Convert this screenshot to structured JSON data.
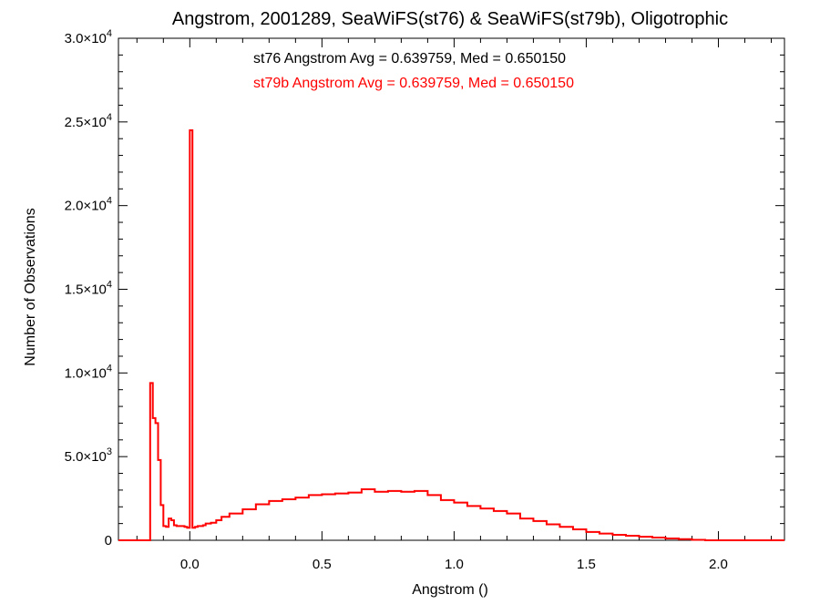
{
  "chart_data": {
    "type": "histogram-step",
    "title": "Angstrom, 2001289, SeaWiFS(st76) & SeaWiFS(st79b), Oligotrophic",
    "xlabel": "Angstrom ()",
    "ylabel": "Number of Observations",
    "xlim": [
      -0.27,
      2.25
    ],
    "ylim": [
      0,
      30000
    ],
    "xticks": [
      {
        "value": 0.0,
        "label": "0.0"
      },
      {
        "value": 0.5,
        "label": "0.5"
      },
      {
        "value": 1.0,
        "label": "1.0"
      },
      {
        "value": 1.5,
        "label": "1.5"
      },
      {
        "value": 2.0,
        "label": "2.0"
      }
    ],
    "yticks": [
      {
        "value": 0,
        "mant": "0",
        "exp": ""
      },
      {
        "value": 5000,
        "mant": "5.0×10",
        "exp": "3"
      },
      {
        "value": 10000,
        "mant": "1.0×10",
        "exp": "4"
      },
      {
        "value": 15000,
        "mant": "1.5×10",
        "exp": "4"
      },
      {
        "value": 20000,
        "mant": "2.0×10",
        "exp": "4"
      },
      {
        "value": 25000,
        "mant": "2.5×10",
        "exp": "4"
      },
      {
        "value": 30000,
        "mant": "3.0×10",
        "exp": "4"
      }
    ],
    "annotations": [
      {
        "text": "st76 Angstrom Avg = 0.639759, Med = 0.650150",
        "color": "#000000"
      },
      {
        "text": "st79b Angstrom Avg = 0.639759, Med = 0.650150",
        "color": "#ff0000"
      }
    ],
    "series": [
      {
        "color": "#ff0000",
        "bin_width": 0.01,
        "x": [
          -0.15,
          -0.14,
          -0.13,
          -0.12,
          -0.11,
          -0.1,
          -0.09,
          -0.08,
          -0.07,
          -0.06,
          -0.05,
          -0.04,
          -0.03,
          -0.02,
          -0.01,
          0.0,
          0.01,
          0.02,
          0.03,
          0.04,
          0.05,
          0.06,
          0.08,
          0.1,
          0.12,
          0.15,
          0.2,
          0.25,
          0.3,
          0.35,
          0.4,
          0.45,
          0.5,
          0.55,
          0.6,
          0.65,
          0.7,
          0.75,
          0.8,
          0.85,
          0.9,
          0.95,
          1.0,
          1.05,
          1.1,
          1.15,
          1.2,
          1.25,
          1.3,
          1.35,
          1.4,
          1.45,
          1.5,
          1.55,
          1.6,
          1.65,
          1.7,
          1.75,
          1.8,
          1.85,
          1.9,
          1.95,
          2.0,
          2.05,
          2.1,
          2.15,
          2.2
        ],
        "y": [
          9400,
          7300,
          7000,
          4800,
          2100,
          850,
          800,
          1300,
          1200,
          900,
          850,
          850,
          850,
          800,
          750,
          24500,
          750,
          800,
          850,
          850,
          900,
          1000,
          1050,
          1200,
          1400,
          1600,
          1850,
          2150,
          2350,
          2450,
          2550,
          2700,
          2750,
          2800,
          2850,
          3050,
          2900,
          2950,
          2900,
          2950,
          2700,
          2400,
          2250,
          2050,
          1900,
          1750,
          1600,
          1300,
          1150,
          950,
          800,
          650,
          500,
          400,
          330,
          270,
          210,
          160,
          110,
          70,
          30,
          0,
          0,
          0,
          0,
          0,
          0
        ]
      }
    ]
  }
}
